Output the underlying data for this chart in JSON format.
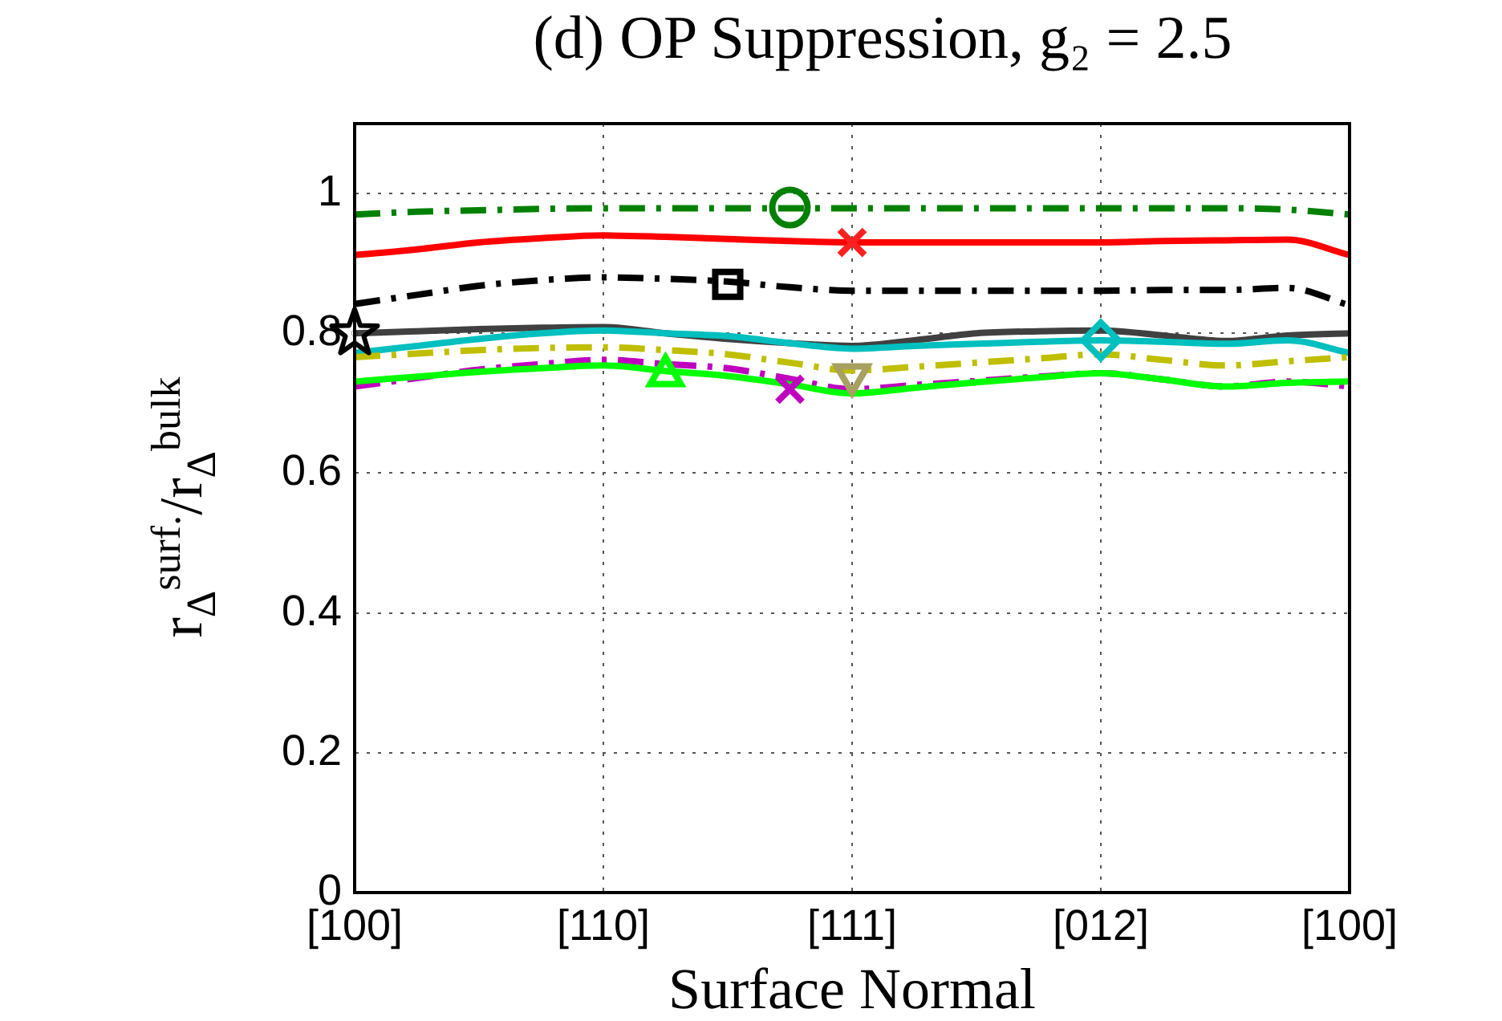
{
  "chart_data": {
    "type": "line",
    "title": "(d) OP Suppression, g₂ = 2.5",
    "xlabel": "Surface Normal",
    "ylabel": "r$_{Δ}$$^{surf.}$/r$_{Δ}$$^{bulk}$",
    "categories": [
      "[100]",
      null,
      null,
      null,
      "[110]",
      null,
      null,
      null,
      "[111]",
      null,
      null,
      null,
      "[012]",
      null,
      null,
      null,
      "[100]"
    ],
    "ylim": [
      0,
      1.1
    ],
    "yticks": [
      0,
      0.2,
      0.4,
      0.6,
      0.8,
      1
    ],
    "grid": true,
    "series": [
      {
        "color": "#008000",
        "line_style": "dashdot",
        "values": [
          0.97,
          0.974,
          0.976,
          0.978,
          0.979,
          0.979,
          0.979,
          0.979,
          0.979,
          0.979,
          0.979,
          0.979,
          0.979,
          0.979,
          0.979,
          0.977,
          0.97
        ]
      },
      {
        "color": "#ff0000",
        "line_style": "solid",
        "values": [
          0.912,
          0.92,
          0.93,
          0.936,
          0.94,
          0.938,
          0.935,
          0.932,
          0.93,
          0.93,
          0.93,
          0.93,
          0.93,
          0.932,
          0.933,
          0.934,
          0.912
        ]
      },
      {
        "color": "#000000",
        "line_style": "dashdot",
        "values": [
          0.842,
          0.855,
          0.868,
          0.876,
          0.88,
          0.878,
          0.874,
          0.866,
          0.861,
          0.861,
          0.861,
          0.861,
          0.861,
          0.862,
          0.862,
          0.865,
          0.84
        ]
      },
      {
        "color": "#404040",
        "line_style": "solid",
        "values": [
          0.8,
          0.803,
          0.806,
          0.808,
          0.809,
          0.8,
          0.792,
          0.786,
          0.782,
          0.79,
          0.8,
          0.803,
          0.804,
          0.797,
          0.789,
          0.797,
          0.8
        ]
      },
      {
        "color": "#00bfbf",
        "line_style": "solid",
        "values": [
          0.772,
          0.782,
          0.792,
          0.8,
          0.804,
          0.8,
          0.796,
          0.786,
          0.778,
          0.782,
          0.785,
          0.788,
          0.79,
          0.788,
          0.785,
          0.79,
          0.772
        ]
      },
      {
        "color": "#bfbf00",
        "line_style": "dashdot",
        "values": [
          0.766,
          0.771,
          0.776,
          0.779,
          0.78,
          0.776,
          0.77,
          0.758,
          0.747,
          0.752,
          0.758,
          0.764,
          0.77,
          0.762,
          0.754,
          0.76,
          0.766
        ]
      },
      {
        "color": "#bf00bf",
        "line_style": "dashdot",
        "values": [
          0.724,
          0.736,
          0.748,
          0.756,
          0.762,
          0.756,
          0.75,
          0.735,
          0.72,
          0.726,
          0.732,
          0.738,
          0.743,
          0.734,
          0.724,
          0.731,
          0.724
        ]
      },
      {
        "color": "#00ff00",
        "line_style": "solid",
        "values": [
          0.731,
          0.738,
          0.745,
          0.75,
          0.754,
          0.746,
          0.739,
          0.727,
          0.714,
          0.722,
          0.73,
          0.737,
          0.743,
          0.734,
          0.724,
          0.729,
          0.731
        ]
      },
      {
        "color": "#008000",
        "marker": "circle",
        "values": [
          null,
          null,
          null,
          null,
          null,
          null,
          null,
          0.98,
          null,
          null,
          null,
          null,
          null,
          null,
          null,
          null,
          null
        ]
      },
      {
        "color": "#ff2020",
        "marker": "cross",
        "values": [
          null,
          null,
          null,
          null,
          null,
          null,
          null,
          null,
          0.93,
          null,
          null,
          null,
          null,
          null,
          null,
          null,
          null
        ]
      },
      {
        "color": "#000000",
        "marker": "square",
        "values": [
          null,
          null,
          null,
          null,
          null,
          null,
          0.87,
          null,
          null,
          null,
          null,
          null,
          null,
          null,
          null,
          null,
          null
        ]
      },
      {
        "color": "#000000",
        "marker": "star",
        "values": [
          0.8,
          null,
          null,
          null,
          null,
          null,
          null,
          null,
          null,
          null,
          null,
          null,
          null,
          null,
          null,
          null,
          null
        ]
      },
      {
        "color": "#00bfbf",
        "marker": "diamond",
        "values": [
          null,
          null,
          null,
          null,
          null,
          null,
          null,
          null,
          null,
          null,
          null,
          null,
          0.79,
          null,
          null,
          null,
          null
        ]
      },
      {
        "color": "#a8a060",
        "marker": "triangle_down",
        "values": [
          null,
          null,
          null,
          null,
          null,
          null,
          null,
          null,
          0.74,
          null,
          null,
          null,
          null,
          null,
          null,
          null,
          null
        ]
      },
      {
        "color": "#bf00bf",
        "marker": "cross",
        "values": [
          null,
          null,
          null,
          null,
          null,
          null,
          null,
          0.72,
          null,
          null,
          null,
          null,
          null,
          null,
          null,
          null,
          null
        ]
      },
      {
        "color": "#00ff00",
        "marker": "triangle",
        "values": [
          null,
          null,
          null,
          null,
          null,
          0.74,
          null,
          null,
          null,
          null,
          null,
          null,
          null,
          null,
          null,
          null,
          null
        ]
      }
    ]
  }
}
